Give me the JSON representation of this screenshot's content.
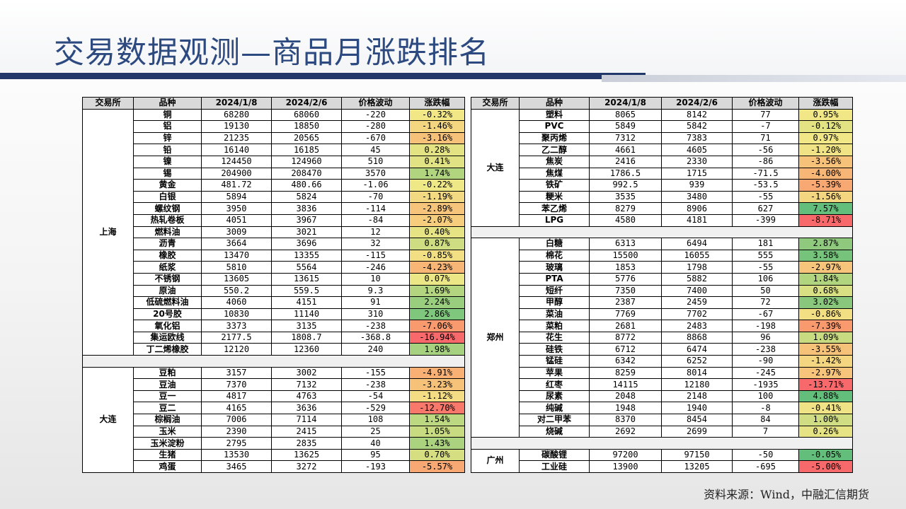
{
  "title": "交易数据观测—商品月涨跌排名",
  "source": "资料来源：Wind，中融汇信期货",
  "headers": [
    "交易所",
    "品种",
    "2024/1/8",
    "2024/2/6",
    "价格波动",
    "涨跌幅"
  ],
  "colors": {
    "title": "#2c4a80",
    "stripe": "#21386a",
    "up": "#ffeb84",
    "down": "#f8696b",
    "strong_up": "#63be7b"
  },
  "left_groups": [
    {
      "exchange": "上海",
      "rows": [
        {
          "name": "铜",
          "d1": "68280",
          "d2": "68060",
          "chg": "-220",
          "pct": "-0.32%",
          "color": "#f1e787"
        },
        {
          "name": "铝",
          "d1": "19130",
          "d2": "18850",
          "chg": "-280",
          "pct": "-1.46%",
          "color": "#f4d680"
        },
        {
          "name": "锌",
          "d1": "21235",
          "d2": "20565",
          "chg": "-670",
          "pct": "-3.16%",
          "color": "#f6c179"
        },
        {
          "name": "铅",
          "d1": "16140",
          "d2": "16185",
          "chg": "45",
          "pct": "0.28%",
          "color": "#e4e384"
        },
        {
          "name": "镍",
          "d1": "124450",
          "d2": "124960",
          "chg": "510",
          "pct": "0.41%",
          "color": "#e1e283"
        },
        {
          "name": "锡",
          "d1": "204900",
          "d2": "208470",
          "chg": "3570",
          "pct": "1.74%",
          "color": "#b1d47f"
        },
        {
          "name": "黄金",
          "d1": "481.72",
          "d2": "480.66",
          "chg": "-1.06",
          "pct": "-0.22%",
          "color": "#efe887"
        },
        {
          "name": "白银",
          "d1": "5894",
          "d2": "5824",
          "chg": "-70",
          "pct": "-1.19%",
          "color": "#f3da82"
        },
        {
          "name": "螺纹钢",
          "d1": "3950",
          "d2": "3836",
          "chg": "-114",
          "pct": "-2.89%",
          "color": "#f6c47a"
        },
        {
          "name": "热轧卷板",
          "d1": "4051",
          "d2": "3967",
          "chg": "-84",
          "pct": "-2.07%",
          "color": "#f5cd7d"
        },
        {
          "name": "燃料油",
          "d1": "3009",
          "d2": "3021",
          "chg": "12",
          "pct": "0.40%",
          "color": "#e6e385"
        },
        {
          "name": "沥青",
          "d1": "3664",
          "d2": "3696",
          "chg": "32",
          "pct": "0.87%",
          "color": "#cedc82"
        },
        {
          "name": "橡胶",
          "d1": "13470",
          "d2": "13355",
          "chg": "-115",
          "pct": "-0.85%",
          "color": "#f2df84"
        },
        {
          "name": "纸浆",
          "d1": "5810",
          "d2": "5564",
          "chg": "-246",
          "pct": "-4.23%",
          "color": "#f7b676"
        },
        {
          "name": "不锈钢",
          "d1": "13605",
          "d2": "13615",
          "chg": "10",
          "pct": "0.07%",
          "color": "#ece786"
        },
        {
          "name": "原油",
          "d1": "550.2",
          "d2": "559.5",
          "chg": "9.3",
          "pct": "1.69%",
          "color": "#b4d580"
        },
        {
          "name": "低硫燃料油",
          "d1": "4060",
          "d2": "4151",
          "chg": "91",
          "pct": "2.24%",
          "color": "#99ce7e"
        },
        {
          "name": "20号胶",
          "d1": "10830",
          "d2": "11140",
          "chg": "310",
          "pct": "2.86%",
          "color": "#7fc77c"
        },
        {
          "name": "氧化铝",
          "d1": "3373",
          "d2": "3135",
          "chg": "-238",
          "pct": "-7.06%",
          "color": "#f99a6e"
        },
        {
          "name": "集运欧线",
          "d1": "2177.5",
          "d2": "1808.7",
          "chg": "-368.8",
          "pct": "-16.94%",
          "color": "#f8696b"
        },
        {
          "name": "丁二烯橡胶",
          "d1": "12120",
          "d2": "12360",
          "chg": "240",
          "pct": "1.98%",
          "color": "#a6d17f"
        }
      ]
    },
    {
      "exchange": "大连",
      "rows": [
        {
          "name": "豆粕",
          "d1": "3157",
          "d2": "3002",
          "chg": "-155",
          "pct": "-4.91%",
          "color": "#f8b074"
        },
        {
          "name": "豆油",
          "d1": "7370",
          "d2": "7132",
          "chg": "-238",
          "pct": "-3.23%",
          "color": "#f6c179"
        },
        {
          "name": "豆一",
          "d1": "4817",
          "d2": "4763",
          "chg": "-54",
          "pct": "-1.12%",
          "color": "#f3dc83"
        },
        {
          "name": "豆二",
          "d1": "4165",
          "d2": "3636",
          "chg": "-529",
          "pct": "-12.70%",
          "color": "#f8786b"
        },
        {
          "name": "棕榈油",
          "d1": "7006",
          "d2": "7114",
          "chg": "108",
          "pct": "1.54%",
          "color": "#bcd880"
        },
        {
          "name": "玉米",
          "d1": "2390",
          "d2": "2415",
          "chg": "25",
          "pct": "1.05%",
          "color": "#c8db81"
        },
        {
          "name": "玉米淀粉",
          "d1": "2795",
          "d2": "2835",
          "chg": "40",
          "pct": "1.43%",
          "color": "#abd27f"
        },
        {
          "name": "生猪",
          "d1": "13530",
          "d2": "13625",
          "chg": "95",
          "pct": "0.70%",
          "color": "#d6de82"
        },
        {
          "name": "鸡蛋",
          "d1": "3465",
          "d2": "3272",
          "chg": "-193",
          "pct": "-5.57%",
          "color": "#f8a872"
        }
      ]
    }
  ],
  "right_groups": [
    {
      "exchange": "大连",
      "rows": [
        {
          "name": "塑料",
          "d1": "8065",
          "d2": "8142",
          "chg": "77",
          "pct": "0.95%",
          "color": "#f1e787"
        },
        {
          "name": "PVC",
          "d1": "5849",
          "d2": "5842",
          "chg": "-7",
          "pct": "-0.12%",
          "color": "#e4e384"
        },
        {
          "name": "聚丙烯",
          "d1": "7312",
          "d2": "7383",
          "chg": "71",
          "pct": "0.97%",
          "color": "#f1e787"
        },
        {
          "name": "乙二醇",
          "d1": "4661",
          "d2": "4605",
          "chg": "-56",
          "pct": "-1.20%",
          "color": "#efe386"
        },
        {
          "name": "焦炭",
          "d1": "2416",
          "d2": "2330",
          "chg": "-86",
          "pct": "-3.56%",
          "color": "#f6c179"
        },
        {
          "name": "焦煤",
          "d1": "1786.5",
          "d2": "1715",
          "chg": "-71.5",
          "pct": "-4.00%",
          "color": "#f7b676"
        },
        {
          "name": "铁矿",
          "d1": "992.5",
          "d2": "939",
          "chg": "-53.5",
          "pct": "-5.39%",
          "color": "#f8a872"
        },
        {
          "name": "粳米",
          "d1": "3535",
          "d2": "3480",
          "chg": "-55",
          "pct": "-1.56%",
          "color": "#f4d680"
        },
        {
          "name": "苯乙烯",
          "d1": "8279",
          "d2": "8906",
          "chg": "627",
          "pct": "7.57%",
          "color": "#63be7b"
        },
        {
          "name": "LPG",
          "d1": "4580",
          "d2": "4181",
          "chg": "-399",
          "pct": "-8.71%",
          "color": "#f8696b"
        }
      ]
    },
    {
      "exchange": "郑州",
      "rows": [
        {
          "name": "白糖",
          "d1": "6313",
          "d2": "6494",
          "chg": "181",
          "pct": "2.87%",
          "color": "#8ec97d"
        },
        {
          "name": "棉花",
          "d1": "15500",
          "d2": "16055",
          "chg": "555",
          "pct": "3.58%",
          "color": "#76c47b"
        },
        {
          "name": "玻璃",
          "d1": "1853",
          "d2": "1798",
          "chg": "-55",
          "pct": "-2.97%",
          "color": "#f6c47a"
        },
        {
          "name": "PTA",
          "d1": "5776",
          "d2": "5882",
          "chg": "106",
          "pct": "1.84%",
          "color": "#b1d47f"
        },
        {
          "name": "短纤",
          "d1": "7350",
          "d2": "7400",
          "chg": "50",
          "pct": "0.68%",
          "color": "#d9df83"
        },
        {
          "name": "甲醇",
          "d1": "2387",
          "d2": "2459",
          "chg": "72",
          "pct": "3.02%",
          "color": "#89c87c"
        },
        {
          "name": "菜油",
          "d1": "7769",
          "d2": "7702",
          "chg": "-67",
          "pct": "-0.86%",
          "color": "#f2df84"
        },
        {
          "name": "菜粕",
          "d1": "2681",
          "d2": "2483",
          "chg": "-198",
          "pct": "-7.39%",
          "color": "#f99a6e"
        },
        {
          "name": "花生",
          "d1": "8772",
          "d2": "8868",
          "chg": "96",
          "pct": "1.09%",
          "color": "#c8db81"
        },
        {
          "name": "硅铁",
          "d1": "6712",
          "d2": "6474",
          "chg": "-238",
          "pct": "-3.55%",
          "color": "#f6c179"
        },
        {
          "name": "锰硅",
          "d1": "6342",
          "d2": "6252",
          "chg": "-90",
          "pct": "-1.42%",
          "color": "#f4d680"
        },
        {
          "name": "苹果",
          "d1": "8259",
          "d2": "8014",
          "chg": "-245",
          "pct": "-2.97%",
          "color": "#f6c47a"
        },
        {
          "name": "红枣",
          "d1": "14115",
          "d2": "12180",
          "chg": "-1935",
          "pct": "-13.71%",
          "color": "#f8696b"
        },
        {
          "name": "尿素",
          "d1": "2048",
          "d2": "2148",
          "chg": "100",
          "pct": "4.88%",
          "color": "#63be7b"
        },
        {
          "name": "纯碱",
          "d1": "1948",
          "d2": "1940",
          "chg": "-8",
          "pct": "-0.41%",
          "color": "#efe386"
        },
        {
          "name": "对二甲苯",
          "d1": "8370",
          "d2": "8454",
          "chg": "84",
          "pct": "1.00%",
          "color": "#d0dd82"
        },
        {
          "name": "烧碱",
          "d1": "2692",
          "d2": "2699",
          "chg": "7",
          "pct": "0.26%",
          "color": "#e6e385"
        }
      ]
    },
    {
      "exchange": "广州",
      "rows": [
        {
          "name": "碳酸锂",
          "d1": "97200",
          "d2": "97150",
          "chg": "-50",
          "pct": "-0.05%",
          "color": "#63be7b"
        },
        {
          "name": "工业硅",
          "d1": "13900",
          "d2": "13205",
          "chg": "-695",
          "pct": "-5.00%",
          "color": "#f8696b"
        }
      ]
    }
  ]
}
